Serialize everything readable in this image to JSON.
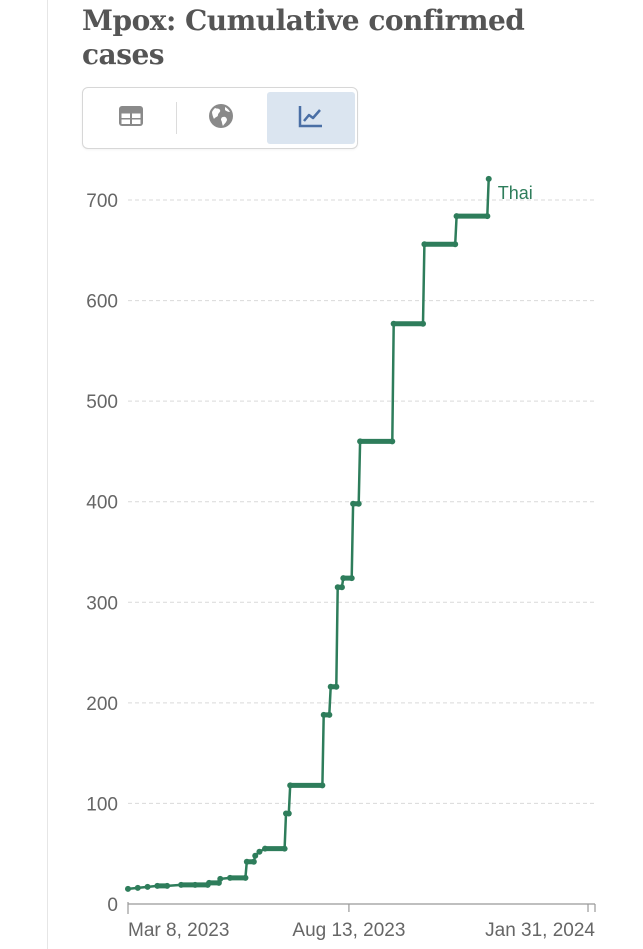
{
  "title": "Mpox: Cumulative confirmed cases",
  "tabs": [
    {
      "name": "table",
      "icon": "table-icon",
      "active": false
    },
    {
      "name": "map",
      "icon": "globe-icon",
      "active": false
    },
    {
      "name": "chart",
      "icon": "line-chart-icon",
      "active": true
    }
  ],
  "colors": {
    "series": "#2e7d5b",
    "title": "#555555",
    "axis_text": "#666666",
    "grid": "#d9d9d9",
    "active_tab": "#dbe5f0",
    "icon": "#8a8a8a",
    "active_icon": "#4a6fa5"
  },
  "chart_data": {
    "type": "line",
    "title": "Mpox: Cumulative confirmed cases",
    "xlabel": "",
    "ylabel": "",
    "y_ticks": [
      "0",
      "100",
      "200",
      "300",
      "400",
      "500",
      "600",
      "700"
    ],
    "x_ticks": [
      "Mar 8, 2023",
      "Aug 13, 2023",
      "Jan 31, 2024"
    ],
    "ylim": [
      0,
      720
    ],
    "xlim": [
      "2023-03-08",
      "2024-02-05"
    ],
    "grid": "horizontal dashed",
    "series": [
      {
        "name": "Thai",
        "points": [
          [
            "2023-03-08",
            15
          ],
          [
            "2023-03-15",
            16
          ],
          [
            "2023-03-22",
            17
          ],
          [
            "2023-03-29",
            18
          ],
          [
            "2023-04-05",
            18
          ],
          [
            "2023-04-15",
            19
          ],
          [
            "2023-04-25",
            19
          ],
          [
            "2023-05-04",
            19
          ],
          [
            "2023-05-05",
            21
          ],
          [
            "2023-05-12",
            21
          ],
          [
            "2023-05-13",
            25
          ],
          [
            "2023-05-20",
            26
          ],
          [
            "2023-05-31",
            26
          ],
          [
            "2023-06-01",
            42
          ],
          [
            "2023-06-06",
            42
          ],
          [
            "2023-06-07",
            48
          ],
          [
            "2023-06-10",
            52
          ],
          [
            "2023-06-14",
            55
          ],
          [
            "2023-06-28",
            55
          ],
          [
            "2023-06-29",
            90
          ],
          [
            "2023-07-01",
            90
          ],
          [
            "2023-07-02",
            118
          ],
          [
            "2023-07-25",
            118
          ],
          [
            "2023-07-26",
            188
          ],
          [
            "2023-07-30",
            188
          ],
          [
            "2023-07-31",
            216
          ],
          [
            "2023-08-04",
            216
          ],
          [
            "2023-08-05",
            315
          ],
          [
            "2023-08-08",
            315
          ],
          [
            "2023-08-09",
            324
          ],
          [
            "2023-08-15",
            324
          ],
          [
            "2023-08-16",
            398
          ],
          [
            "2023-08-20",
            398
          ],
          [
            "2023-08-21",
            460
          ],
          [
            "2023-09-13",
            460
          ],
          [
            "2023-09-14",
            577
          ],
          [
            "2023-10-05",
            577
          ],
          [
            "2023-10-06",
            656
          ],
          [
            "2023-10-28",
            656
          ],
          [
            "2023-10-29",
            684
          ],
          [
            "2023-11-20",
            684
          ],
          [
            "2023-11-21",
            721
          ]
        ]
      }
    ]
  }
}
